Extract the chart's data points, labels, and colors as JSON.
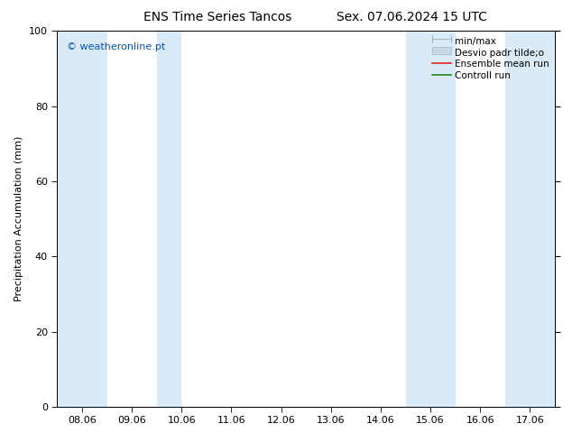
{
  "title_left": "ENS Time Series Tancos",
  "title_right": "Sex. 07.06.2024 15 UTC",
  "ylabel": "Precipitation Accumulation (mm)",
  "ylim": [
    0,
    100
  ],
  "yticks": [
    0,
    20,
    40,
    60,
    80,
    100
  ],
  "x_labels": [
    "08.06",
    "09.06",
    "10.06",
    "11.06",
    "12.06",
    "13.06",
    "14.06",
    "15.06",
    "16.06",
    "17.06"
  ],
  "x_positions": [
    0,
    1,
    2,
    3,
    4,
    5,
    6,
    7,
    8,
    9
  ],
  "xlim_left": -0.5,
  "xlim_right": 9.5,
  "shade_bands": [
    [
      -0.5,
      0.5
    ],
    [
      1.5,
      2.0
    ],
    [
      6.5,
      7.5
    ],
    [
      8.5,
      9.5
    ]
  ],
  "shade_color": "#daeaf7",
  "background_color": "#ffffff",
  "plot_bg_color": "#ffffff",
  "watermark_text": "© weatheronline.pt",
  "watermark_color": "#0055bb",
  "legend_minmax_color": "#a0b8c8",
  "legend_stddev_color": "#c8d8e4",
  "legend_mean_color": "#dd2222",
  "legend_ctrl_color": "#228822",
  "title_fontsize": 10,
  "axis_label_fontsize": 8,
  "tick_fontsize": 8,
  "legend_fontsize": 7.5,
  "watermark_fontsize": 8
}
